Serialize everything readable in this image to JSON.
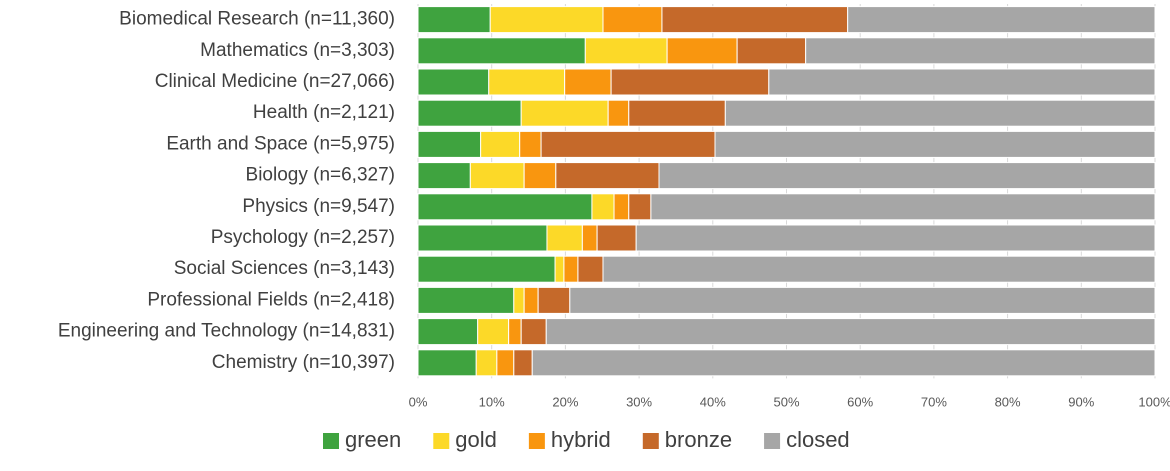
{
  "chart_data": {
    "type": "stacked-bar-horizontal",
    "categories": [
      "Biomedical Research (n=11,360)",
      "Mathematics (n=3,303)",
      "Clinical Medicine (n=27,066)",
      "Health (n=2,121)",
      "Earth and Space (n=5,975)",
      "Biology (n=6,327)",
      "Physics (n=9,547)",
      "Psychology (n=2,257)",
      "Social Sciences (n=3,143)",
      "Professional Fields (n=2,418)",
      "Engineering and Technology (n=14,831)",
      "Chemistry (n=10,397)"
    ],
    "series": [
      {
        "name": "green",
        "color": "#3fa33f",
        "values": [
          9.8,
          22.7,
          9.6,
          14.0,
          8.5,
          7.1,
          23.6,
          17.5,
          18.6,
          13.0,
          8.1,
          7.9
        ]
      },
      {
        "name": "gold",
        "color": "#fcd928",
        "values": [
          15.3,
          11.1,
          10.3,
          11.8,
          5.3,
          7.3,
          3.0,
          4.8,
          1.2,
          1.4,
          4.2,
          2.8
        ]
      },
      {
        "name": "hybrid",
        "color": "#f9960f",
        "values": [
          8.0,
          9.5,
          6.3,
          2.8,
          2.9,
          4.3,
          2.0,
          2.0,
          1.9,
          1.9,
          1.7,
          2.3
        ]
      },
      {
        "name": "bronze",
        "color": "#c5692a",
        "values": [
          25.2,
          9.3,
          21.4,
          13.1,
          23.6,
          14.0,
          3.0,
          5.3,
          3.4,
          4.3,
          3.4,
          2.5
        ]
      },
      {
        "name": "closed",
        "color": "#a6a6a6",
        "values": [
          41.7,
          47.4,
          52.4,
          58.3,
          59.7,
          67.3,
          68.4,
          70.4,
          74.9,
          79.4,
          82.6,
          84.5
        ]
      }
    ],
    "xlim": [
      0,
      100
    ],
    "xticks": [
      {
        "value": 0,
        "label": "0%"
      },
      {
        "value": 10,
        "label": "10%"
      },
      {
        "value": 20,
        "label": "20%"
      },
      {
        "value": 30,
        "label": "30%"
      },
      {
        "value": 40,
        "label": "40%"
      },
      {
        "value": 50,
        "label": "50%"
      },
      {
        "value": 60,
        "label": "60%"
      },
      {
        "value": 70,
        "label": "70%"
      },
      {
        "value": 80,
        "label": "80%"
      },
      {
        "value": 90,
        "label": "90%"
      },
      {
        "value": 100,
        "label": "100%"
      }
    ],
    "grid": true,
    "legend": "bottom"
  }
}
